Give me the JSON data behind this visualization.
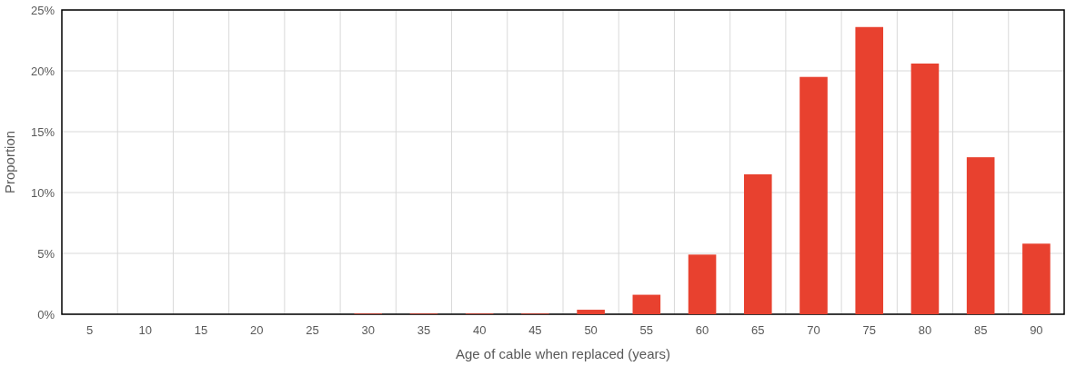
{
  "chart_data": {
    "type": "bar",
    "xlabel": "Age of cable when replaced (years)",
    "ylabel": "Proportion",
    "categories": [
      "5",
      "10",
      "15",
      "20",
      "25",
      "30",
      "35",
      "40",
      "45",
      "50",
      "55",
      "60",
      "65",
      "70",
      "75",
      "80",
      "85",
      "90"
    ],
    "values": [
      0,
      0,
      0,
      0,
      0,
      0.05,
      0.05,
      0.05,
      0.05,
      0.37,
      1.6,
      4.9,
      11.5,
      19.5,
      23.6,
      20.6,
      12.9,
      5.8
    ],
    "color": "#e8412f",
    "ylim": [
      0,
      25
    ],
    "yticks": [
      {
        "value": 0,
        "label": "0%"
      },
      {
        "value": 5,
        "label": "5%"
      },
      {
        "value": 10,
        "label": "10%"
      },
      {
        "value": 15,
        "label": "15%"
      },
      {
        "value": 20,
        "label": "20%"
      },
      {
        "value": 25,
        "label": "25%"
      }
    ],
    "grid": true
  }
}
